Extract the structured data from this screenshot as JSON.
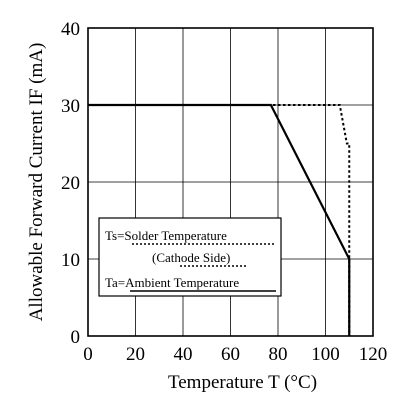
{
  "chart_data": {
    "type": "line",
    "xlabel": "Temperature T (°C)",
    "ylabel": "Allowable Forward Current IF (mA)",
    "xlim": [
      0,
      120
    ],
    "ylim": [
      0,
      40
    ],
    "xticks": [
      0,
      20,
      40,
      60,
      80,
      100,
      120
    ],
    "yticks": [
      0,
      10,
      20,
      30,
      40
    ],
    "grid": true,
    "series": [
      {
        "name": "Ts=Solder Temperature (Cathode Side)",
        "style": "dotted",
        "color": "#000000",
        "x": [
          0,
          106,
          109,
          110,
          110
        ],
        "y": [
          30,
          30,
          25,
          25,
          0
        ]
      },
      {
        "name": "Ta=Ambient Temperature",
        "style": "solid",
        "color": "#000000",
        "x": [
          0,
          77,
          110,
          110
        ],
        "y": [
          30,
          30,
          10,
          0
        ]
      }
    ],
    "legend": {
      "position": "lower-left",
      "entries": [
        {
          "line1": "Ts=Solder Temperature",
          "line2": "(Cathode Side)",
          "style": "dotted"
        },
        {
          "line1": "Ta=Ambient Temperature",
          "style": "solid"
        }
      ]
    }
  }
}
